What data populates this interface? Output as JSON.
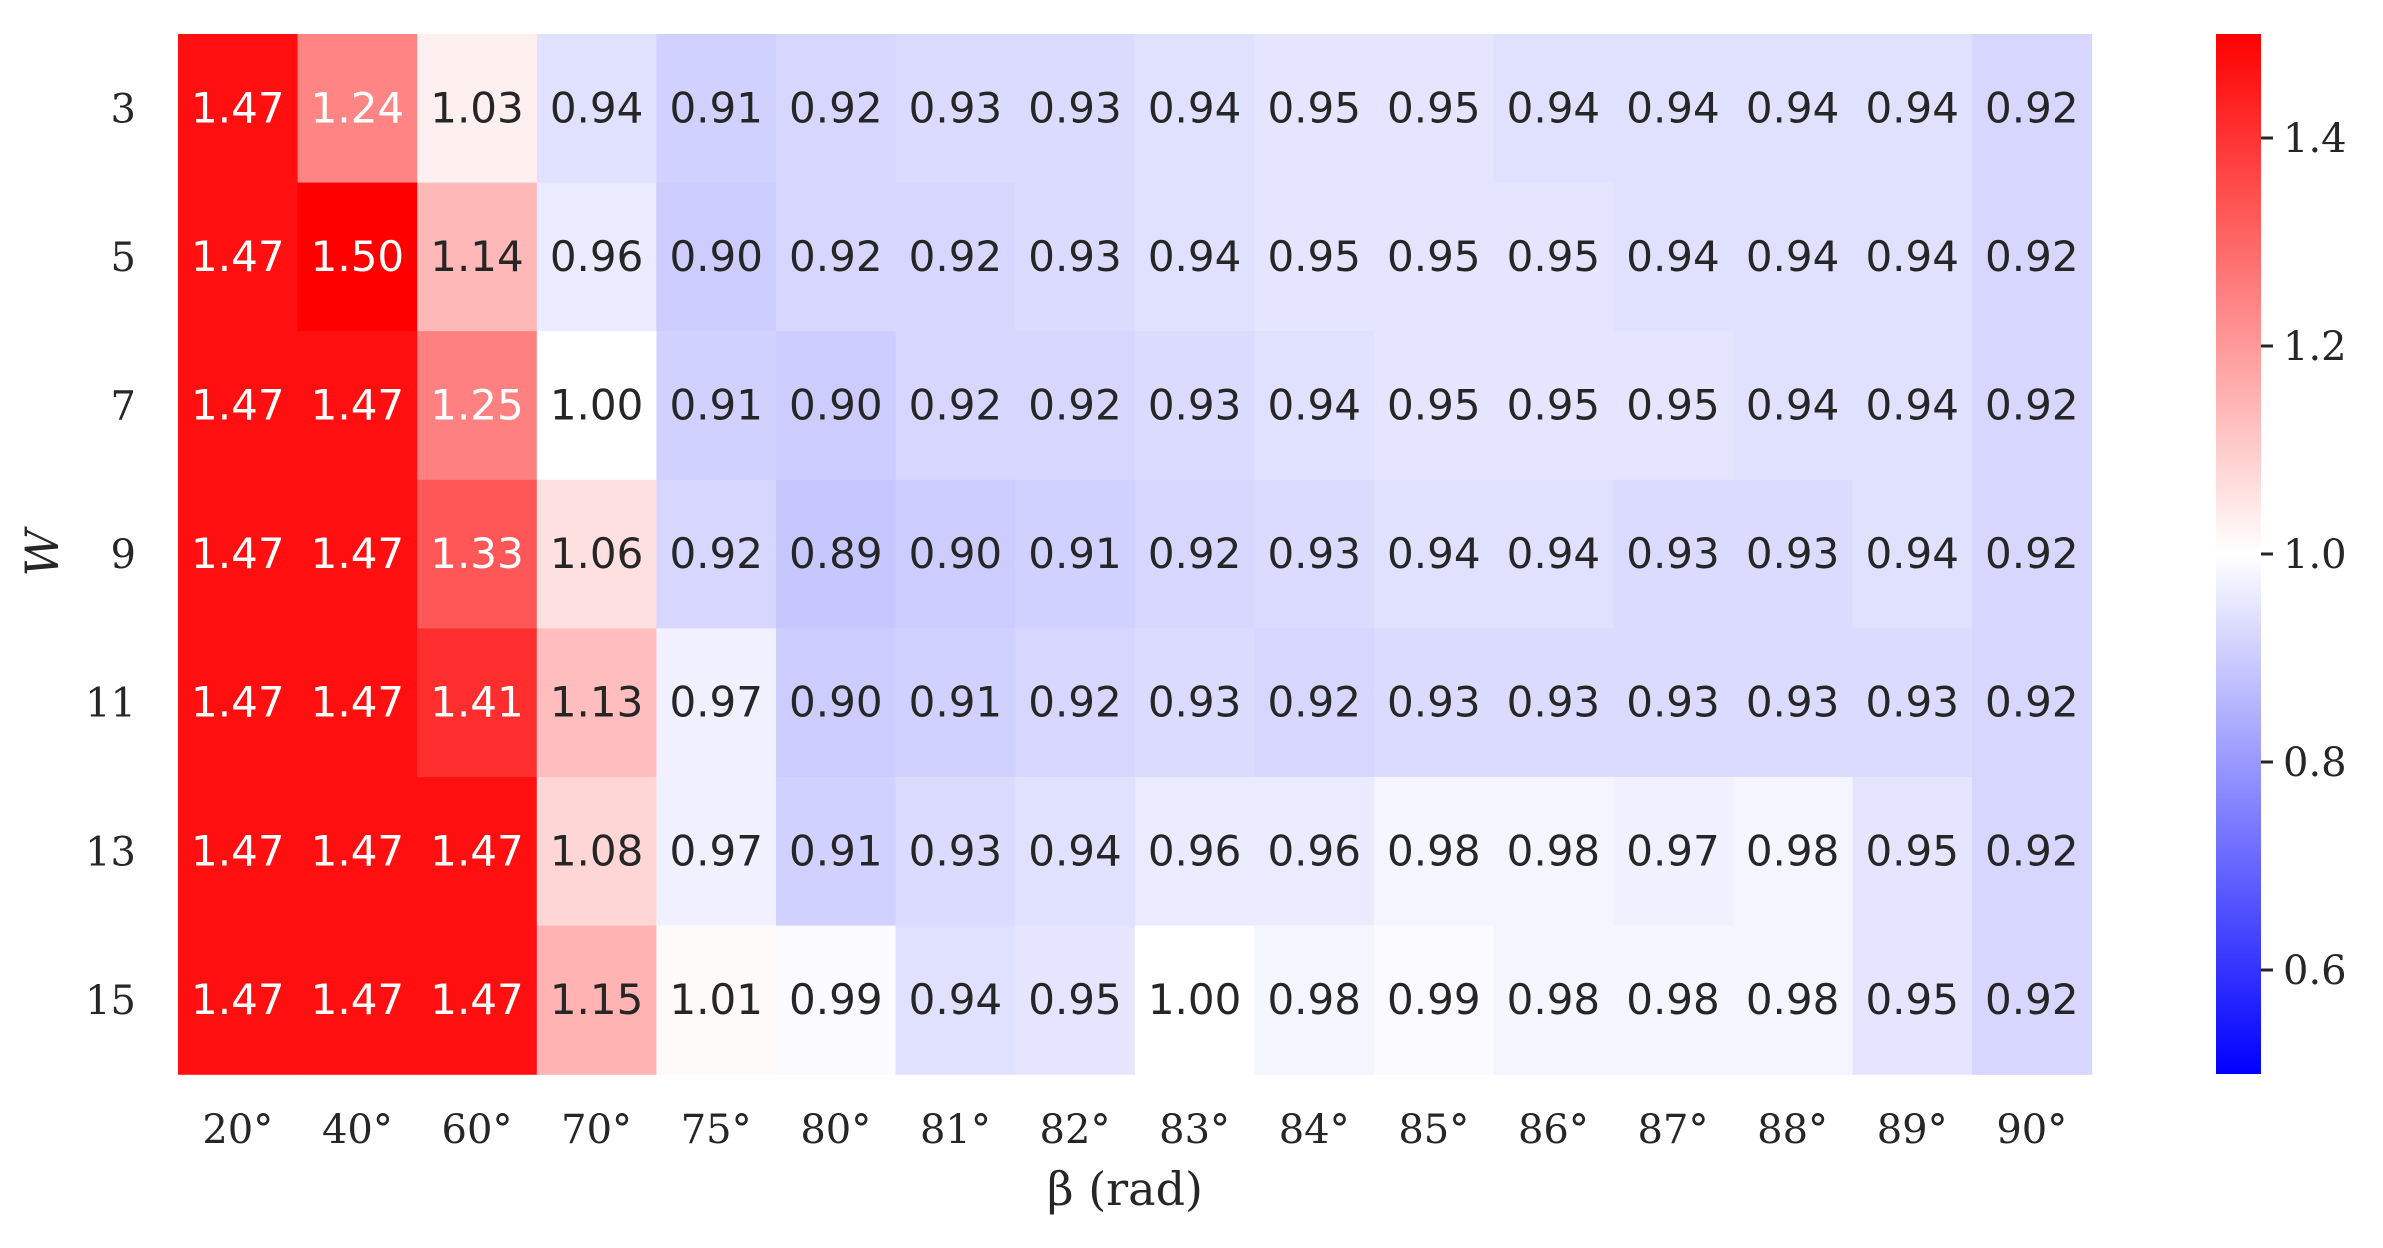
{
  "chart_data": {
    "type": "heatmap",
    "title": "",
    "xlabel": "β (rad)",
    "ylabel": "W",
    "x_categories": [
      "20°",
      "40°",
      "60°",
      "70°",
      "75°",
      "80°",
      "81°",
      "82°",
      "83°",
      "84°",
      "85°",
      "86°",
      "87°",
      "88°",
      "89°",
      "90°"
    ],
    "y_categories": [
      "3",
      "5",
      "7",
      "9",
      "11",
      "13",
      "15"
    ],
    "values": [
      [
        1.47,
        1.24,
        1.03,
        0.94,
        0.91,
        0.92,
        0.93,
        0.93,
        0.94,
        0.95,
        0.95,
        0.94,
        0.94,
        0.94,
        0.94,
        0.92
      ],
      [
        1.47,
        1.5,
        1.14,
        0.96,
        0.9,
        0.92,
        0.92,
        0.93,
        0.94,
        0.95,
        0.95,
        0.95,
        0.94,
        0.94,
        0.94,
        0.92
      ],
      [
        1.47,
        1.47,
        1.25,
        1.0,
        0.91,
        0.9,
        0.92,
        0.92,
        0.93,
        0.94,
        0.95,
        0.95,
        0.95,
        0.94,
        0.94,
        0.92
      ],
      [
        1.47,
        1.47,
        1.33,
        1.06,
        0.92,
        0.89,
        0.9,
        0.91,
        0.92,
        0.93,
        0.94,
        0.94,
        0.93,
        0.93,
        0.94,
        0.92
      ],
      [
        1.47,
        1.47,
        1.41,
        1.13,
        0.97,
        0.9,
        0.91,
        0.92,
        0.93,
        0.92,
        0.93,
        0.93,
        0.93,
        0.93,
        0.93,
        0.92
      ],
      [
        1.47,
        1.47,
        1.47,
        1.08,
        0.97,
        0.91,
        0.93,
        0.94,
        0.96,
        0.96,
        0.98,
        0.98,
        0.97,
        0.98,
        0.95,
        0.92
      ],
      [
        1.47,
        1.47,
        1.47,
        1.15,
        1.01,
        0.99,
        0.94,
        0.95,
        1.0,
        0.98,
        0.99,
        0.98,
        0.98,
        0.98,
        0.95,
        0.92
      ]
    ],
    "colormap": "bwr",
    "vmin": 0.5,
    "vmax": 1.5,
    "colorbar_ticks": [
      "0.6",
      "0.8",
      "1.0",
      "1.2",
      "1.4"
    ],
    "colorbar_tick_values": [
      0.6,
      0.8,
      1.0,
      1.2,
      1.4
    ],
    "colors": {
      "low": "#0000ff",
      "mid": "#ffffff",
      "high": "#ff0000",
      "dark_text": "#262626",
      "light_text": "#ffffff"
    }
  }
}
